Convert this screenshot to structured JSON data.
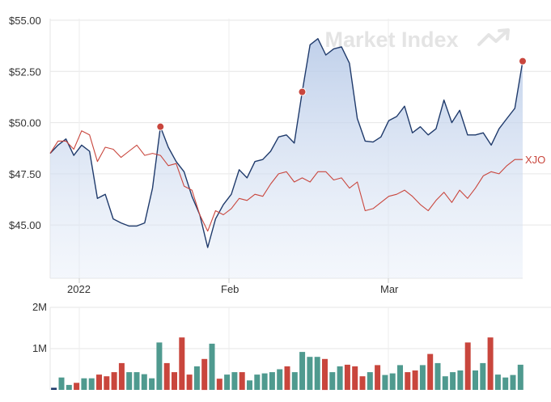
{
  "chart_data": [
    {
      "type": "line",
      "watermark": "Market Index",
      "y_ticks": [
        "$55.00",
        "$52.50",
        "$50.00",
        "$47.50",
        "$45.00"
      ],
      "ylim": [
        42.4,
        55.0
      ],
      "x_ticks": [
        "2022",
        "Feb",
        "Mar"
      ],
      "xlim": [
        0,
        59
      ],
      "series": [
        {
          "name": "",
          "color": "#1f3a6b",
          "fill": true,
          "values": [
            48.5,
            48.9,
            49.2,
            48.4,
            48.9,
            48.6,
            46.3,
            46.5,
            45.3,
            45.1,
            44.95,
            44.95,
            45.1,
            46.8,
            49.8,
            48.8,
            48.1,
            47.6,
            46.4,
            45.5,
            43.9,
            45.3,
            46.0,
            46.5,
            47.7,
            47.3,
            48.1,
            48.2,
            48.6,
            49.3,
            49.4,
            49.0,
            51.5,
            53.8,
            54.1,
            53.3,
            53.6,
            53.7,
            52.9,
            50.2,
            49.1,
            49.05,
            49.3,
            50.1,
            50.3,
            50.8,
            49.5,
            49.8,
            49.4,
            49.7,
            51.1,
            50.0,
            50.6,
            49.4,
            49.4,
            49.5,
            48.9,
            49.7,
            50.2,
            50.7,
            53.0
          ],
          "markers": [
            14,
            32,
            60
          ]
        },
        {
          "name": "XJO",
          "color": "#c9463d",
          "fill": false,
          "values": [
            48.5,
            49.1,
            49.1,
            48.7,
            49.6,
            49.4,
            48.1,
            48.8,
            48.7,
            48.3,
            48.6,
            48.9,
            48.4,
            48.5,
            48.4,
            47.9,
            48.0,
            46.9,
            46.7,
            45.5,
            44.7,
            45.7,
            45.5,
            45.8,
            46.3,
            46.2,
            46.5,
            46.4,
            47.0,
            47.5,
            47.6,
            47.1,
            47.3,
            47.1,
            47.6,
            47.6,
            47.2,
            47.3,
            46.8,
            47.1,
            45.7,
            45.8,
            46.1,
            46.4,
            46.5,
            46.7,
            46.4,
            46.0,
            45.7,
            46.2,
            46.6,
            46.1,
            46.7,
            46.3,
            46.8,
            47.4,
            47.6,
            47.5,
            47.9,
            48.2,
            48.2
          ],
          "markers": []
        }
      ]
    },
    {
      "type": "bar",
      "y_ticks": [
        "2M",
        "1M"
      ],
      "ylim": [
        0,
        2.0
      ],
      "unit": "M",
      "colors": {
        "up": "#4f9a8f",
        "down": "#c9463d"
      },
      "values": [
        0.05,
        0.3,
        0.12,
        0.17,
        0.28,
        0.28,
        0.37,
        0.33,
        0.43,
        0.65,
        0.43,
        0.43,
        0.38,
        0.28,
        1.15,
        0.65,
        0.43,
        1.27,
        0.37,
        0.57,
        0.75,
        1.12,
        0.27,
        0.37,
        0.43,
        0.43,
        0.23,
        0.37,
        0.4,
        0.43,
        0.5,
        0.57,
        0.43,
        0.92,
        0.8,
        0.8,
        0.75,
        0.43,
        0.57,
        0.61,
        0.57,
        0.33,
        0.43,
        0.6,
        0.36,
        0.4,
        0.6,
        0.43,
        0.47,
        0.6,
        0.87,
        0.65,
        0.33,
        0.43,
        0.47,
        1.15,
        0.47,
        0.65,
        1.27,
        0.37,
        0.3,
        0.36,
        0.61
      ],
      "directions": [
        "dark",
        "up",
        "up",
        "down",
        "up",
        "up",
        "down",
        "down",
        "down",
        "down",
        "up",
        "up",
        "up",
        "up",
        "up",
        "down",
        "down",
        "down",
        "down",
        "up",
        "down",
        "up",
        "down",
        "up",
        "up",
        "down",
        "up",
        "up",
        "up",
        "up",
        "up",
        "down",
        "up",
        "up",
        "up",
        "up",
        "down",
        "up",
        "up",
        "down",
        "down",
        "down",
        "up",
        "down",
        "up",
        "up",
        "up",
        "down",
        "down",
        "up",
        "down",
        "up",
        "up",
        "up",
        "up",
        "down",
        "up",
        "up",
        "down",
        "up",
        "up",
        "up",
        "up"
      ]
    }
  ],
  "legend_label": "XJO"
}
